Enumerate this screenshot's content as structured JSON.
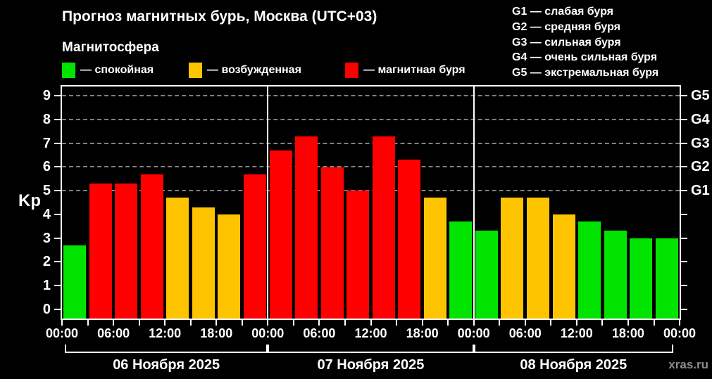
{
  "header": {
    "title": "Прогноз магнитных бурь, Москва (UTC+03)",
    "subtitle": "Магнитосфера",
    "legend": [
      {
        "key": "quiet",
        "label": "— спокойная",
        "color": "#00e400"
      },
      {
        "key": "excited",
        "label": "— возбужденная",
        "color": "#ffc400"
      },
      {
        "key": "storm",
        "label": "— магнитная буря",
        "color": "#ff0000"
      }
    ],
    "g_scale_legend": [
      "G1 — слабая буря",
      "G2 — средняя буря",
      "G3 — сильная буря",
      "G4 — очень сильная буря",
      "G5 — экстремальная буря"
    ]
  },
  "chart_data": {
    "type": "bar",
    "ylabel": "Kp",
    "ylim": [
      -0.4,
      9.4
    ],
    "y_ticks": [
      0,
      1,
      2,
      3,
      4,
      5,
      6,
      7,
      8,
      9
    ],
    "gridlines": [
      5,
      6,
      7,
      8,
      9
    ],
    "right_axis_labels": [
      {
        "value": 5,
        "label": "G1"
      },
      {
        "value": 6,
        "label": "G2"
      },
      {
        "value": 7,
        "label": "G3"
      },
      {
        "value": 8,
        "label": "G4"
      },
      {
        "value": 9,
        "label": "G5"
      }
    ],
    "interval_hours": 3,
    "x_tick_labels": [
      "00:00",
      "06:00",
      "12:00",
      "18:00",
      "00:00",
      "06:00",
      "12:00",
      "18:00",
      "00:00",
      "06:00",
      "12:00",
      "18:00",
      "00:00"
    ],
    "days": [
      {
        "date": "06 Ноября 2025",
        "values": [
          2.7,
          5.3,
          5.3,
          5.7,
          4.7,
          4.3,
          4.0,
          5.7
        ]
      },
      {
        "date": "07 Ноября 2025",
        "values": [
          6.7,
          7.3,
          6.0,
          5.0,
          7.3,
          6.3,
          4.7,
          3.7
        ]
      },
      {
        "date": "08 Ноября 2025",
        "values": [
          3.3,
          4.7,
          4.7,
          4.0,
          3.7,
          3.3,
          3.0,
          3.0
        ]
      }
    ],
    "thresholds": {
      "quiet_below": 4,
      "storm_from": 5
    },
    "colors": {
      "quiet": "#00e400",
      "excited": "#ffc400",
      "storm": "#ff0000"
    },
    "legend_position": "top",
    "grid_style": "dashed"
  },
  "footer": {
    "watermark": "xras.ru"
  }
}
